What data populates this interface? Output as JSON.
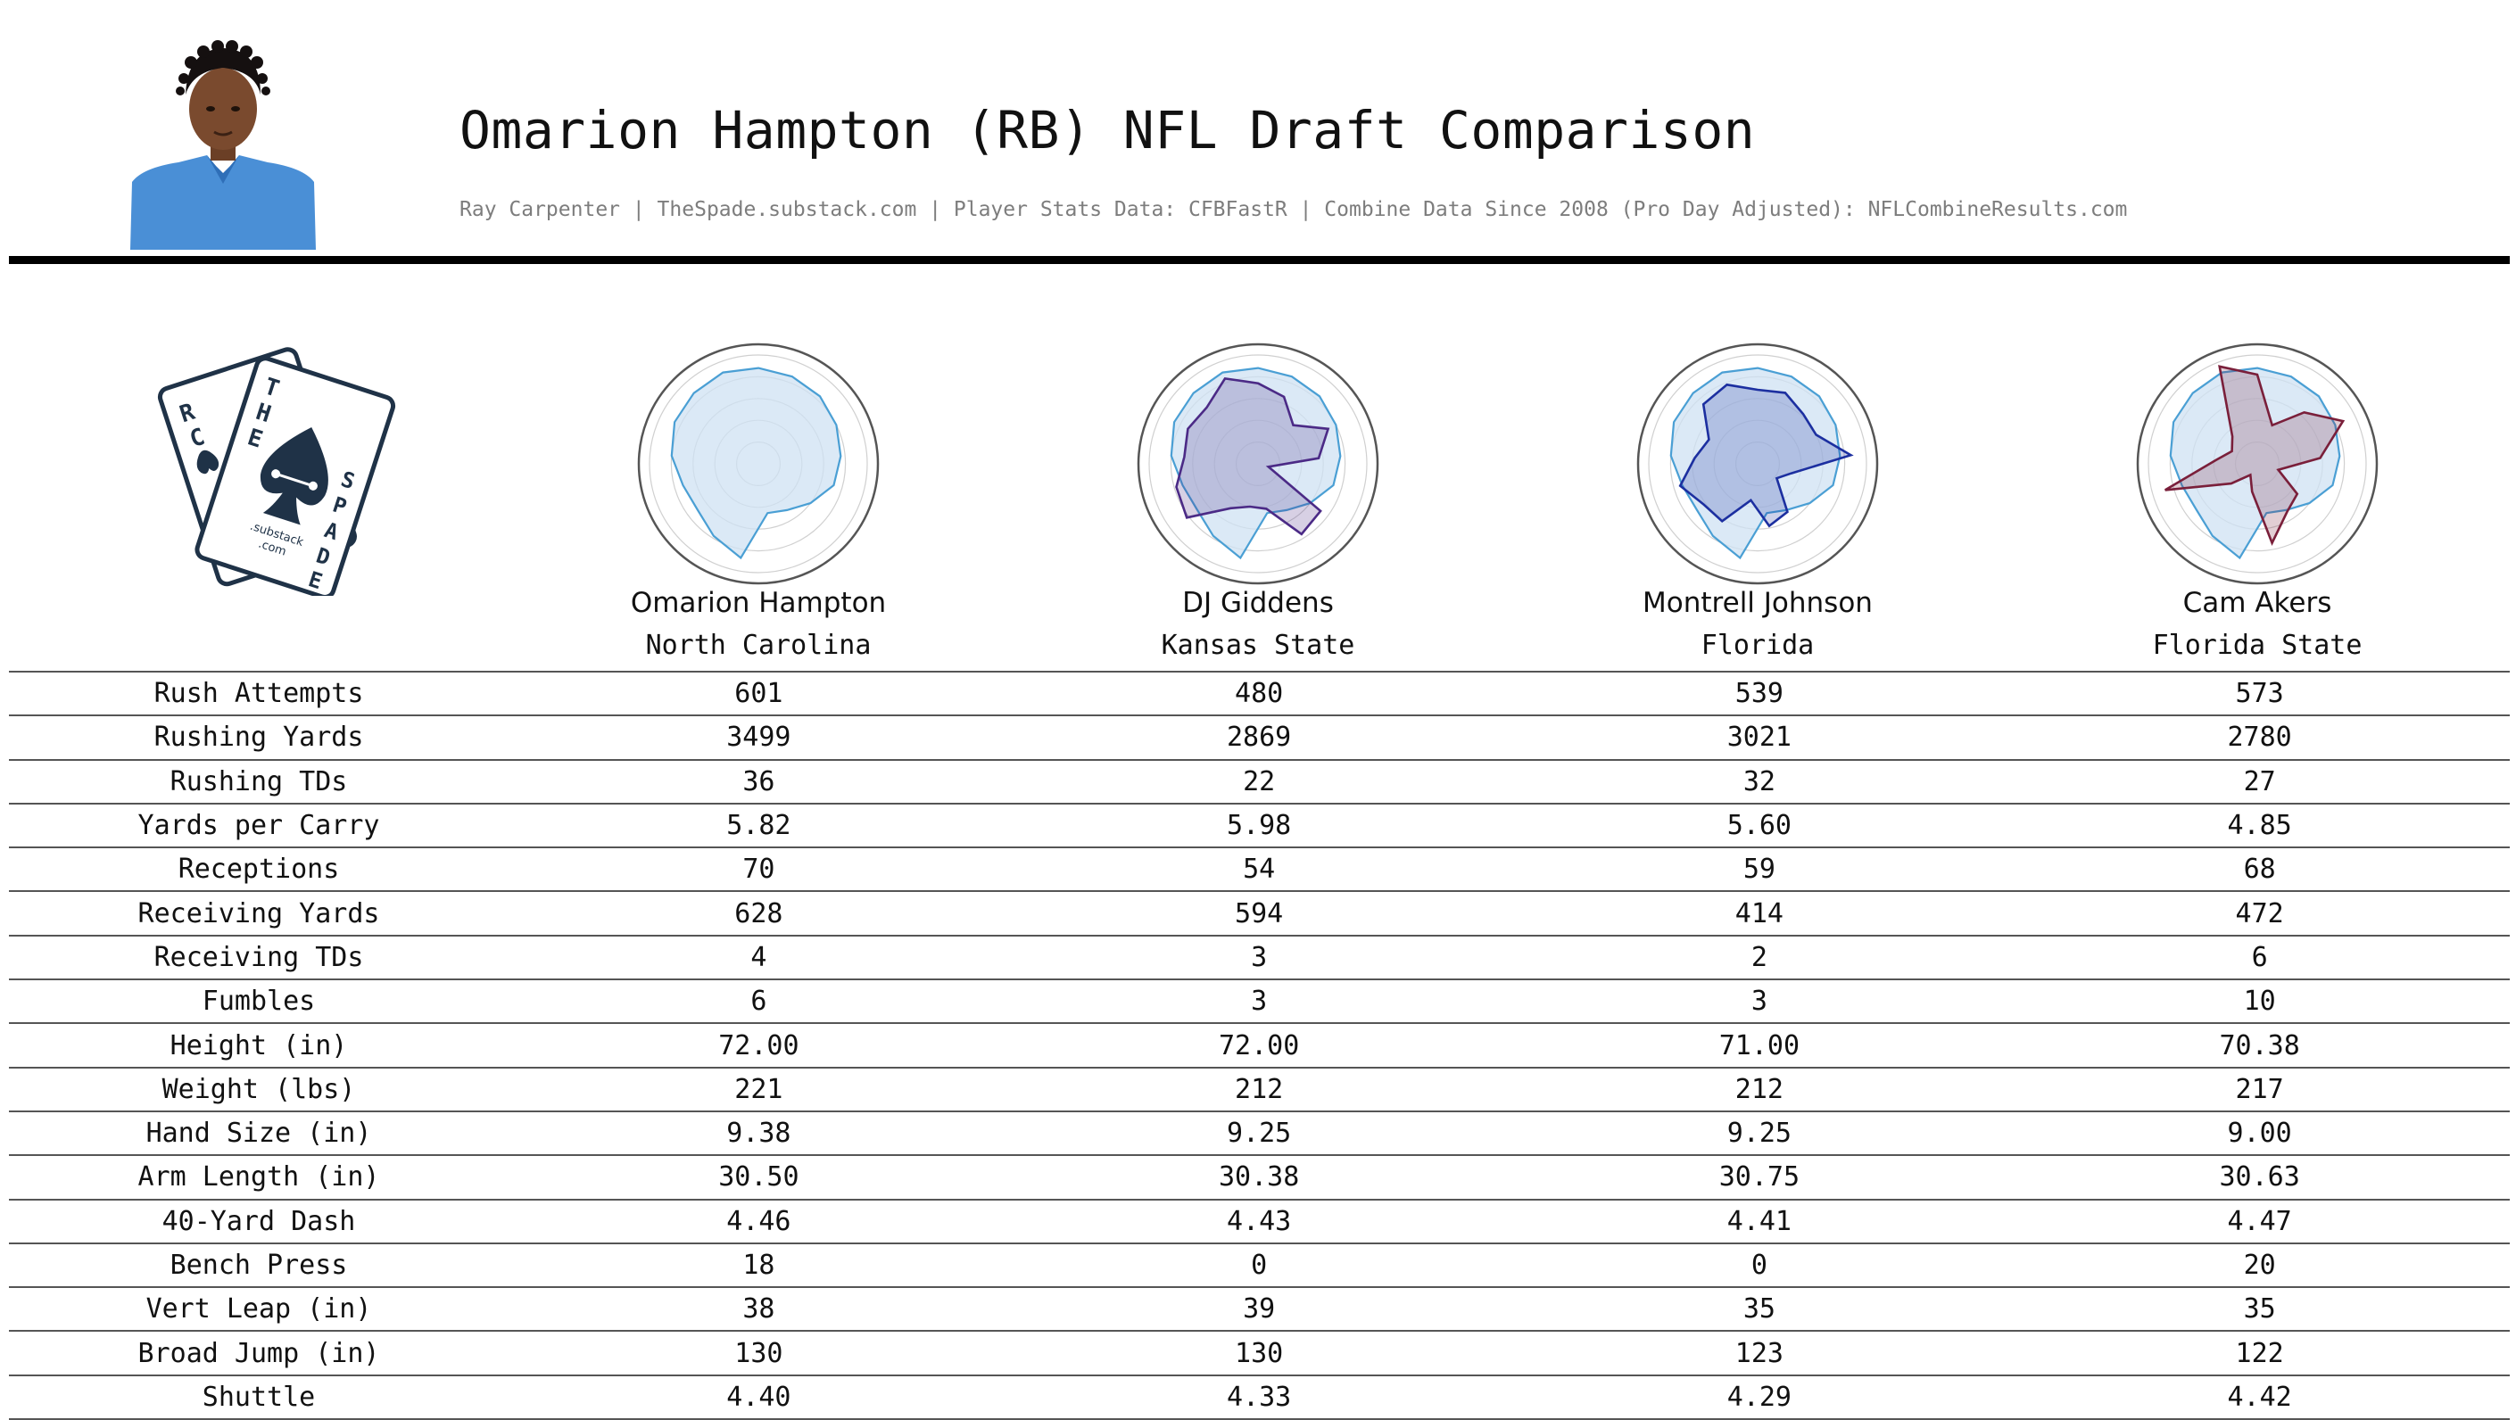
{
  "header": {
    "title": "Omarion Hampton (RB) NFL Draft Comparison",
    "subtitle": "Ray Carpenter | TheSpade.substack.com | Player Stats Data: CFBFastR | Combine Data Since 2008 (Pro Day Adjusted): NFLCombineResults.com"
  },
  "logo": {
    "card_back_letters": [
      "R",
      "C"
    ],
    "card_front_top": [
      "T",
      "H",
      "E"
    ],
    "card_front_side": [
      "S",
      "P",
      "A",
      "D",
      "E"
    ],
    "brand_line1": ".substack",
    "brand_line2": ".com"
  },
  "colors": {
    "base_fill": "#cfe2f3",
    "base_stroke": "#4a9fd4",
    "giddens": "#4b2a86",
    "johnson": "#1c2fa0",
    "akers": "#7a1f3a",
    "shirt": "#4a8fd6"
  },
  "chart_data": {
    "type": "radar",
    "axes": [
      "Rush Attempts",
      "Rushing Yards",
      "Rushing TDs",
      "Yards per Carry",
      "Receptions",
      "Receiving Yards",
      "Receiving TDs",
      "Fumbles",
      "Height (in)",
      "Weight (lbs)",
      "Hand Size (in)",
      "Arm Length (in)",
      "40-Yard Dash",
      "Bench Press",
      "Vert Leap (in)",
      "Broad Jump (in)",
      "Shuttle"
    ],
    "grid": true,
    "players": [
      {
        "name": "Omarion Hampton",
        "school": "North Carolina",
        "stats": [
          "601",
          "3499",
          "36",
          "5.82",
          "70",
          "628",
          "4",
          "6",
          "72.00",
          "221",
          "9.38",
          "30.50",
          "4.46",
          "18",
          "38",
          "130",
          "4.40"
        ],
        "radar_values": [
          0.88,
          0.86,
          0.84,
          0.8,
          0.76,
          0.72,
          0.6,
          0.5,
          0.46,
          0.88,
          0.78,
          0.7,
          0.72,
          0.8,
          0.86,
          0.88,
          0.9
        ]
      },
      {
        "name": "DJ Giddens",
        "school": "Kansas State",
        "stats": [
          "480",
          "2869",
          "22",
          "5.98",
          "54",
          "594",
          "3",
          "3",
          "72.00",
          "212",
          "9.25",
          "30.38",
          "4.43",
          "0",
          "39",
          "130",
          "4.33"
        ],
        "radar_values": [
          0.74,
          0.66,
          0.48,
          0.72,
          0.56,
          0.1,
          0.72,
          0.76,
          0.42,
          0.4,
          0.48,
          0.82,
          0.78,
          0.68,
          0.72,
          0.7,
          0.84
        ]
      },
      {
        "name": "Montrell Johnson",
        "school": "Florida",
        "stats": [
          "539",
          "3021",
          "32",
          "5.60",
          "59",
          "414",
          "2",
          "3",
          "71.00",
          "212",
          "9.25",
          "30.75",
          "4.41",
          "0",
          "35",
          "123",
          "4.29"
        ],
        "radar_values": [
          0.68,
          0.7,
          0.62,
          0.6,
          0.86,
          0.32,
          0.22,
          0.52,
          0.58,
          0.34,
          0.62,
          0.62,
          0.74,
          0.58,
          0.5,
          0.74,
          0.78
        ]
      },
      {
        "name": "Cam Akers",
        "school": "Florida State",
        "stats": [
          "573",
          "2780",
          "27",
          "4.85",
          "68",
          "472",
          "6",
          "10",
          "70.38",
          "217",
          "9.00",
          "30.63",
          "4.47",
          "20",
          "35",
          "122",
          "4.42"
        ],
        "radar_values": [
          0.82,
          0.38,
          0.64,
          0.88,
          0.58,
          0.2,
          0.46,
          0.52,
          0.74,
          0.26,
          0.12,
          0.3,
          0.88,
          0.38,
          0.26,
          0.34,
          0.96
        ]
      }
    ]
  }
}
